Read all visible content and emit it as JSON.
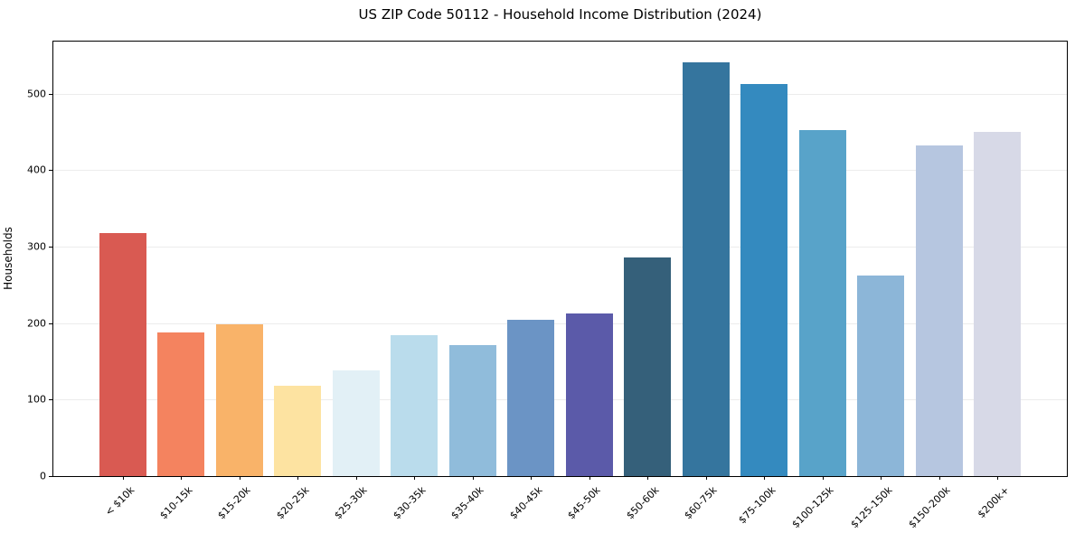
{
  "chart_data": {
    "type": "bar",
    "title": "US ZIP Code 50112 - Household Income Distribution (2024)",
    "xlabel": "",
    "ylabel": "Households",
    "categories": [
      "< $10k",
      "$10-15k",
      "$15-20k",
      "$20-25k",
      "$25-30k",
      "$30-35k",
      "$35-40k",
      "$40-45k",
      "$45-50k",
      "$50-60k",
      "$60-75k",
      "$75-100k",
      "$100-125k",
      "$125-150k",
      "$150-200k",
      "$200k+"
    ],
    "values": [
      318,
      188,
      198,
      118,
      138,
      184,
      171,
      204,
      213,
      286,
      541,
      512,
      452,
      262,
      432,
      450
    ],
    "bar_colors": [
      "#d95a52",
      "#f4835f",
      "#f9b369",
      "#fde3a1",
      "#e2f0f6",
      "#badcec",
      "#90bcdb",
      "#6b94c5",
      "#5b5aa9",
      "#35607a",
      "#35759e",
      "#348abf",
      "#58a3c9",
      "#8cb6d8",
      "#b6c6e0",
      "#d7d9e7"
    ],
    "yticks": [
      0,
      100,
      200,
      300,
      400,
      500
    ],
    "ylim": [
      0,
      568
    ],
    "grid": "horizontal",
    "legend": "none",
    "plot_background": "#ffffff",
    "spine_color": "#000000",
    "gridline_color": "#ececec"
  }
}
